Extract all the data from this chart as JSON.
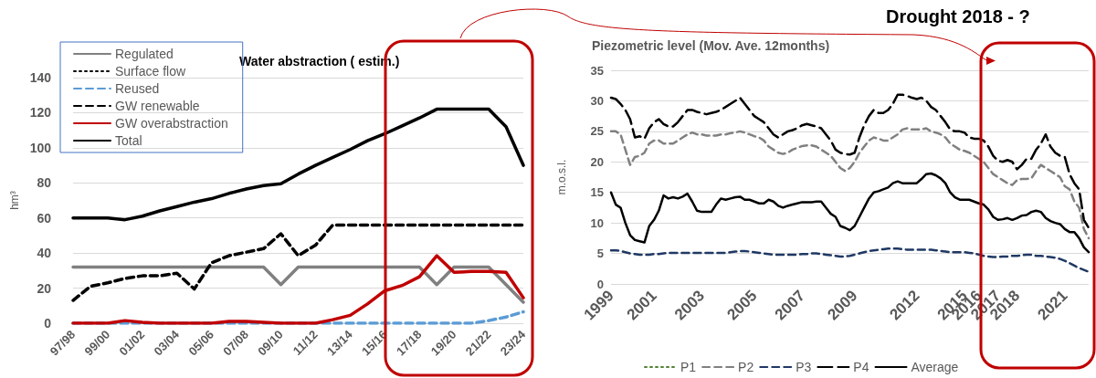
{
  "chart_data": [
    {
      "type": "line",
      "title": "Water abstraction ( estim.)",
      "ylabel": "hm³",
      "categories": [
        "97/98",
        null,
        "99/00",
        null,
        "01/02",
        null,
        "03/04",
        null,
        "05/06",
        null,
        "07/08",
        null,
        "09/10",
        null,
        "11/12",
        null,
        "13/14",
        null,
        "15/16",
        null,
        "17/18",
        null,
        "19/20",
        null,
        "21/22",
        null,
        "23/24"
      ],
      "ylim": [
        0,
        140
      ],
      "yticks": [
        0,
        20,
        40,
        60,
        80,
        100,
        120,
        140
      ],
      "grid": "y",
      "legend": "top left",
      "series": [
        {
          "name": "Regulated",
          "color": "#808080",
          "line_style": "solid",
          "values": [
            32,
            32,
            32,
            32,
            32,
            32,
            32,
            32,
            32,
            32,
            32,
            32,
            22,
            32,
            32,
            32,
            32,
            32,
            32,
            32,
            32,
            22,
            32,
            32,
            32,
            22,
            12
          ]
        },
        {
          "name": "Surface flow",
          "color": "#000000",
          "line_style": "dotted",
          "values": [
            null,
            null,
            null,
            null,
            null,
            null,
            null,
            null,
            null,
            null,
            null,
            null,
            null,
            null,
            null,
            null,
            null,
            null,
            null,
            null,
            null,
            null,
            null,
            null,
            null,
            null,
            null
          ]
        },
        {
          "name": "Reused",
          "color": "#5b9bd5",
          "line_style": "dashed",
          "values": [
            0,
            0,
            0,
            0,
            0,
            0,
            0,
            0,
            0,
            0,
            0,
            0,
            0,
            0,
            0,
            0,
            0,
            0,
            0,
            0,
            0,
            0,
            0,
            0,
            1.5,
            3.5,
            6.5
          ]
        },
        {
          "name": "GW renewable",
          "color": "#000000",
          "line_style": "dashed",
          "values": [
            13,
            21,
            23,
            25.5,
            27,
            27,
            28.5,
            19.5,
            34.5,
            38.5,
            40.5,
            42.5,
            51,
            38.5,
            44.5,
            56,
            56,
            56,
            56,
            56,
            56,
            56,
            56,
            56,
            56,
            56,
            56
          ]
        },
        {
          "name": "GW overabstraction",
          "color": "#c00000",
          "line_style": "solid",
          "values": [
            0,
            0,
            0,
            1.5,
            0.5,
            0,
            0,
            0,
            0,
            1,
            1,
            0.5,
            0,
            0,
            0,
            2,
            4.5,
            11,
            18.5,
            21.5,
            26.5,
            38.5,
            29,
            29.5,
            29.5,
            29,
            14.5
          ]
        },
        {
          "name": "Total",
          "color": "#000000",
          "line_style": "solid",
          "values": [
            60,
            60,
            60,
            59,
            61,
            64,
            66.5,
            69,
            71,
            74,
            76.5,
            78.5,
            79.5,
            85,
            90,
            94.5,
            99,
            104,
            108,
            112.5,
            117,
            122,
            122,
            122,
            122,
            112,
            90
          ]
        }
      ]
    },
    {
      "type": "line",
      "title": "Piezometric level (Mov. Ave. 12months)",
      "ylabel": "m.o.s.l.",
      "annotations": [
        "Drought 2018 - ?"
      ],
      "categories": [
        "1999",
        null,
        null,
        null,
        null,
        null,
        null,
        null,
        null,
        "2001",
        null,
        null,
        null,
        null,
        null,
        null,
        null,
        null,
        null,
        "2003",
        null,
        null,
        null,
        null,
        null,
        null,
        null,
        null,
        null,
        null,
        "2005",
        null,
        null,
        null,
        null,
        null,
        null,
        null,
        null,
        null,
        "2007",
        null,
        null,
        null,
        null,
        null,
        null,
        null,
        null,
        null,
        null,
        "2009",
        null,
        null,
        null,
        null,
        null,
        null,
        null,
        null,
        null,
        null,
        null,
        null,
        "2012",
        null,
        null,
        null,
        null,
        null,
        null,
        null,
        null,
        null,
        "2015",
        null,
        null,
        "2016",
        null,
        null,
        null,
        "2017",
        null,
        null,
        null,
        "2018",
        null,
        null,
        null,
        null,
        null,
        null,
        null,
        null,
        null,
        "2021",
        null,
        null,
        null,
        null,
        null
      ],
      "ylim": [
        0,
        35
      ],
      "yticks": [
        0,
        5,
        10,
        15,
        20,
        25,
        30,
        35
      ],
      "grid": "y",
      "legend": "bottom",
      "series": [
        {
          "name": "P1",
          "color": "#548235",
          "line_style": "dotted",
          "values": [
            null,
            null,
            null,
            null,
            null,
            null,
            null,
            null,
            null,
            null,
            null,
            null,
            null,
            null,
            null,
            null,
            null,
            null,
            null,
            null,
            null,
            null,
            null,
            null,
            null,
            null,
            null,
            null,
            null,
            null,
            null,
            null,
            null,
            null,
            null,
            null,
            null,
            null,
            null,
            null,
            null,
            null,
            null,
            null,
            null,
            null,
            null,
            null,
            null,
            null,
            null,
            null,
            null,
            null,
            null,
            null,
            null,
            null,
            null,
            null,
            null,
            null,
            null,
            null,
            null,
            null,
            null,
            null,
            null,
            null,
            null,
            null,
            null,
            null,
            null,
            null,
            null,
            null,
            null,
            null,
            null,
            null,
            null,
            null,
            null,
            null,
            null,
            null,
            null,
            null,
            null,
            null,
            null,
            null,
            null,
            null,
            null,
            null,
            null,
            null,
            null
          ]
        },
        {
          "name": "P2",
          "color": "#808080",
          "line_style": "dashed",
          "values": [
            25,
            25,
            24.5,
            22,
            19.5,
            20.8,
            21,
            21.5,
            23,
            23.5,
            23.5,
            23,
            23,
            23,
            23.5,
            24,
            24.5,
            24.8,
            24.5,
            24.5,
            24.3,
            24.3,
            24.3,
            24.5,
            24.5,
            24.7,
            24.8,
            25,
            24.8,
            24.5,
            24.2,
            24,
            23.5,
            22.5,
            22,
            21.5,
            21.3,
            21.5,
            22,
            22.3,
            22.6,
            22.7,
            22.7,
            22.5,
            22,
            21.5,
            21,
            20,
            19,
            18.5,
            19,
            20,
            21.5,
            22.5,
            23.5,
            24,
            23.8,
            23.5,
            23.5,
            24,
            24.5,
            25.3,
            25.5,
            25.3,
            25.3,
            25.3,
            25.5,
            25,
            24.8,
            24.5,
            24,
            23,
            22.5,
            22,
            21.8,
            21.5,
            21,
            20.5,
            20,
            19,
            18,
            17.5,
            17,
            16.5,
            16.2,
            17,
            17.2,
            17.2,
            17.3,
            18.5,
            19.5,
            19,
            18.5,
            18,
            17.5,
            16,
            15.5,
            13.5,
            12.5,
            9,
            7.5
          ]
        },
        {
          "name": "P3",
          "color": "#1f3864",
          "line_style": "dashed",
          "values": [
            5.5,
            5.5,
            5.4,
            5.2,
            5.0,
            4.9,
            4.8,
            4.8,
            4.8,
            4.9,
            4.9,
            5.0,
            5.1,
            5.1,
            5.1,
            5.1,
            5.1,
            5.1,
            5.1,
            5.1,
            5.1,
            5.1,
            5.1,
            5.1,
            5.1,
            5.2,
            5.3,
            5.4,
            5.4,
            5.3,
            5.2,
            5.1,
            5.0,
            4.9,
            4.8,
            4.8,
            4.8,
            4.8,
            4.8,
            4.8,
            4.9,
            4.9,
            5.0,
            5.0,
            4.9,
            4.8,
            4.7,
            4.6,
            4.5,
            4.5,
            4.6,
            4.8,
            5.0,
            5.2,
            5.4,
            5.5,
            5.6,
            5.7,
            5.8,
            5.8,
            5.8,
            5.7,
            5.6,
            5.6,
            5.6,
            5.6,
            5.6,
            5.6,
            5.5,
            5.4,
            5.3,
            5.2,
            5.2,
            5.2,
            5.2,
            5.1,
            5.0,
            4.8,
            4.6,
            4.5,
            4.4,
            4.4,
            4.5,
            4.5,
            4.6,
            4.6,
            4.7,
            4.8,
            4.8,
            4.6,
            4.6,
            4.5,
            4.4,
            4.3,
            4.1,
            3.8,
            3.4,
            3.0,
            2.6,
            2.3,
            2.0
          ]
        },
        {
          "name": "P4",
          "color": "#000000",
          "line_style": "dashed",
          "values": [
            30.5,
            30.3,
            29.5,
            28.5,
            27,
            24,
            24.2,
            23.8,
            25.5,
            26.5,
            27,
            26.2,
            25.8,
            25.8,
            26.5,
            27.5,
            28.5,
            28.5,
            28.2,
            28,
            27.8,
            28,
            28.2,
            28.5,
            29,
            29.5,
            30,
            30.5,
            29.5,
            28.5,
            27.5,
            27,
            26.5,
            25.5,
            24.5,
            24,
            24.5,
            25,
            25.2,
            25.5,
            26,
            26.2,
            26,
            25.8,
            25.5,
            24.5,
            23.5,
            22,
            21.5,
            21.3,
            21.2,
            21.5,
            24,
            26,
            27.5,
            28.5,
            28,
            28,
            28.5,
            29.5,
            31,
            31,
            30.8,
            30.5,
            30.3,
            30.5,
            30,
            29,
            28.5,
            27.5,
            26.5,
            25.3,
            25,
            25,
            24.8,
            24,
            23.8,
            23.8,
            23.5,
            22.5,
            21,
            20.2,
            20,
            20.3,
            20,
            18.8,
            19.5,
            20.5,
            20.5,
            22,
            23,
            24.5,
            22.5,
            21.5,
            21,
            20.8,
            18,
            16.5,
            15.5,
            10.5,
            9.2
          ]
        },
        {
          "name": "Average",
          "color": "#000000",
          "line_style": "solid",
          "values": [
            15,
            13,
            12.5,
            10,
            8,
            7.2,
            7,
            6.8,
            9.5,
            10.5,
            12,
            14.5,
            14,
            14.2,
            14,
            14.3,
            14.8,
            13.5,
            12,
            11.8,
            11.8,
            11.8,
            13,
            14,
            13.8,
            14,
            14.2,
            14.3,
            13.8,
            13.8,
            13.5,
            13.2,
            13.2,
            13.8,
            13.5,
            12.8,
            12.5,
            12.8,
            13,
            13.2,
            13.4,
            13.4,
            13.4,
            13.5,
            13.5,
            12.5,
            11.5,
            11,
            9.5,
            9.2,
            8.8,
            9.5,
            11,
            12.5,
            14,
            15,
            15.2,
            15.5,
            15.8,
            16.5,
            16.8,
            16.5,
            16.5,
            16.5,
            16.5,
            17.2,
            18,
            18.1,
            17.8,
            17.3,
            16.5,
            15,
            14.2,
            13.8,
            13.8,
            13.8,
            13.5,
            13.2,
            13,
            12.2,
            11,
            10.5,
            10.6,
            10.8,
            10.5,
            10.8,
            11.2,
            11.3,
            11.8,
            12,
            11.8,
            10.8,
            10.3,
            10,
            9.8,
            9,
            8.5,
            8.5,
            7.5,
            6,
            5.2
          ]
        }
      ]
    }
  ]
}
